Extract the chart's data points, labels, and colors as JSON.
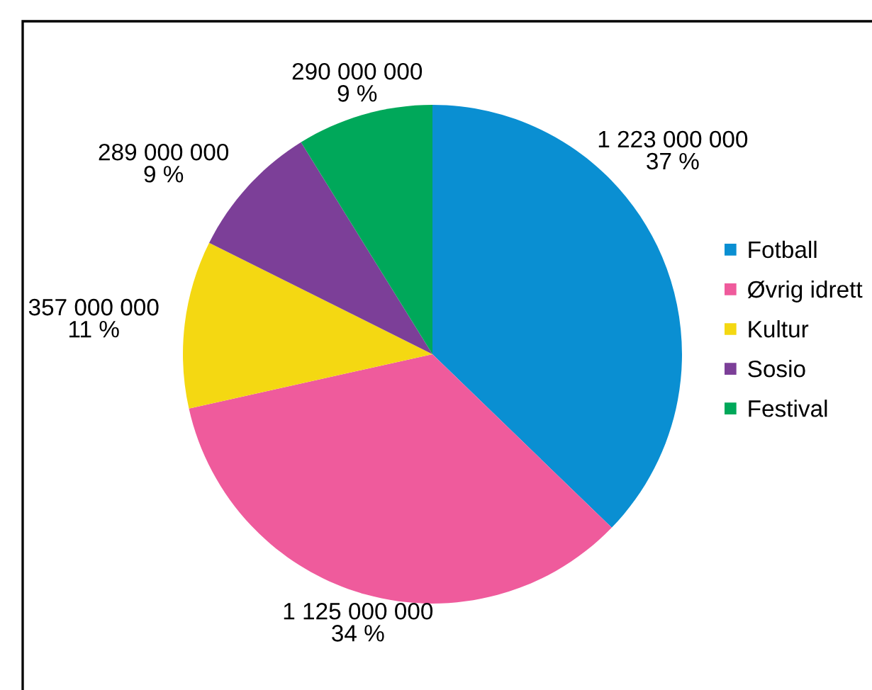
{
  "chart_data": {
    "type": "pie",
    "categories": [
      "Fotball",
      "Øvrig idrett",
      "Kultur",
      "Sosio",
      "Festival"
    ],
    "values": [
      1223000000,
      1125000000,
      357000000,
      289000000,
      290000000
    ],
    "colors": [
      "#0a8fd2",
      "#ef5b9c",
      "#f4d812",
      "#7c3f98",
      "#00a85a"
    ],
    "value_labels": [
      "1 223 000 000\n37 %",
      "1 125 000 000\n34 %",
      "357 000 000\n11 %",
      "289 000 000\n9 %",
      "290 000 000\n9 %"
    ],
    "legend": "right"
  }
}
